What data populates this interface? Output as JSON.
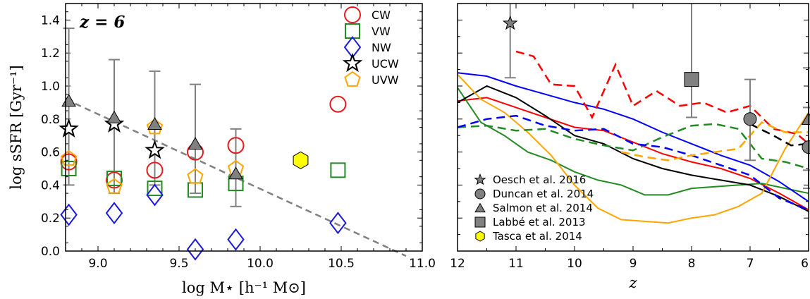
{
  "chart_data": [
    {
      "type": "scatter",
      "annotation": "z = 6",
      "xlabel": "log M⋆ [h⁻¹ M⊙]",
      "ylabel": "log sSFR [Gyr⁻¹]",
      "xlim": [
        8.8,
        11.0
      ],
      "ylim": [
        0.0,
        1.5
      ],
      "xticks": [
        "9.0",
        "9.5",
        "10.0",
        "10.5",
        "11.0"
      ],
      "xtick_values": [
        9.0,
        9.5,
        10.0,
        10.5,
        11.0
      ],
      "yticks": [
        "0.0",
        "0.2",
        "0.4",
        "0.6",
        "0.8",
        "1.0",
        "1.2",
        "1.4"
      ],
      "ytick_values": [
        0.0,
        0.2,
        0.4,
        0.6,
        0.8,
        1.0,
        1.2,
        1.4
      ],
      "legend_position": "top-right",
      "series": [
        {
          "name": "CW",
          "marker": "circle",
          "color": "#e41a1c",
          "x": [
            8.82,
            9.1,
            9.35,
            9.6,
            9.85,
            10.48
          ],
          "y": [
            0.54,
            0.43,
            0.49,
            0.6,
            0.64,
            0.89
          ]
        },
        {
          "name": "VW",
          "marker": "square",
          "color": "#228b22",
          "x": [
            8.82,
            9.1,
            9.35,
            9.6,
            9.85,
            10.48
          ],
          "y": [
            0.5,
            0.44,
            0.38,
            0.37,
            0.41,
            0.49
          ]
        },
        {
          "name": "NW",
          "marker": "diamond",
          "color": "#1a1adb",
          "x": [
            8.82,
            9.1,
            9.35,
            9.6,
            9.85,
            10.48
          ],
          "y": [
            0.22,
            0.23,
            0.34,
            0.01,
            0.07,
            0.17
          ]
        },
        {
          "name": "UCW",
          "marker": "star",
          "color": "#000000",
          "x": [
            8.82,
            9.1,
            9.35
          ],
          "y": [
            0.74,
            0.77,
            0.61
          ]
        },
        {
          "name": "UVW",
          "marker": "pentagon",
          "color": "#ffa500",
          "x": [
            8.82,
            9.1,
            9.35,
            9.6,
            9.85
          ],
          "y": [
            0.56,
            0.39,
            0.75,
            0.45,
            0.5
          ]
        }
      ],
      "observations": [
        {
          "label": "Salmon et al. 2014",
          "marker": "triangle",
          "x": [
            8.82,
            9.1,
            9.35,
            9.6,
            9.85
          ],
          "y": [
            0.91,
            0.81,
            0.77,
            0.65,
            0.47
          ],
          "yerr_low": [
            0.4,
            0.35,
            0.4,
            0.35,
            0.27
          ],
          "yerr_high": [
            1.35,
            1.16,
            1.09,
            1.01,
            0.74
          ]
        },
        {
          "label": "Tasca et al. 2014",
          "marker": "hexagon",
          "x": [
            10.25
          ],
          "y": [
            0.55
          ]
        }
      ],
      "fit_line": {
        "x": [
          8.8,
          10.9
        ],
        "y": [
          0.92,
          -0.03
        ]
      }
    },
    {
      "type": "line",
      "xlabel": "z",
      "xlim": [
        12,
        6
      ],
      "ylim": [
        0.0,
        1.5
      ],
      "xticks": [
        "12",
        "11",
        "10",
        "9",
        "8",
        "7",
        "6"
      ],
      "xtick_values": [
        12,
        11,
        10,
        9,
        8,
        7,
        6
      ],
      "legend_position": "bottom-left",
      "series": [
        {
          "name": "CW",
          "color": "#ff0000",
          "style": "solid",
          "x": [
            12,
            11.5,
            11,
            10.5,
            10,
            9.5,
            9,
            8.5,
            8,
            7.5,
            7,
            6.5,
            6
          ],
          "y": [
            0.91,
            0.93,
            0.87,
            0.81,
            0.75,
            0.73,
            0.66,
            0.59,
            0.54,
            0.5,
            0.44,
            0.35,
            0.25
          ]
        },
        {
          "name": "VW",
          "color": "#228b22",
          "style": "solid",
          "x": [
            12,
            11.6,
            11.2,
            10.8,
            10.4,
            10,
            9.6,
            9.2,
            8.8,
            8.4,
            8,
            7.6,
            7.2,
            6.8,
            6.4,
            6
          ],
          "y": [
            0.99,
            0.78,
            0.7,
            0.6,
            0.55,
            0.48,
            0.43,
            0.4,
            0.34,
            0.34,
            0.38,
            0.39,
            0.4,
            0.41,
            0.38,
            0.35
          ]
        },
        {
          "name": "NW",
          "color": "#0000ff",
          "style": "solid",
          "x": [
            12,
            11.5,
            11,
            10.5,
            10,
            9.5,
            9,
            8.5,
            8,
            7.5,
            7,
            6.5,
            6
          ],
          "y": [
            1.08,
            1.06,
            1.0,
            0.95,
            0.9,
            0.86,
            0.8,
            0.72,
            0.65,
            0.58,
            0.52,
            0.42,
            0.3
          ]
        },
        {
          "name": "UCW",
          "color": "#000000",
          "style": "solid",
          "x": [
            12,
            11.5,
            11,
            10.5,
            10,
            9.5,
            9,
            8.5,
            8,
            7.5,
            7,
            6.5,
            6
          ],
          "y": [
            0.9,
            1.0,
            0.93,
            0.82,
            0.7,
            0.65,
            0.56,
            0.5,
            0.46,
            0.43,
            0.4,
            0.33,
            0.24
          ]
        },
        {
          "name": "UVW",
          "color": "#ffa500",
          "style": "solid",
          "x": [
            12,
            11.6,
            11.2,
            10.8,
            10.4,
            10,
            9.6,
            9.2,
            8.8,
            8.4,
            8,
            7.6,
            7.2,
            6.8,
            6.4,
            6
          ],
          "y": [
            1.07,
            0.92,
            0.84,
            0.72,
            0.58,
            0.4,
            0.26,
            0.19,
            0.18,
            0.17,
            0.2,
            0.22,
            0.27,
            0.35,
            0.62,
            0.84
          ]
        },
        {
          "name": "CW",
          "color": "#ff0000",
          "style": "dashed",
          "x": [
            11,
            10.7,
            10.4,
            10,
            9.7,
            9.3,
            9,
            8.6,
            8.2,
            7.8,
            7.4,
            7,
            6.6,
            6.2,
            6
          ],
          "y": [
            1.21,
            1.18,
            1.01,
            1.0,
            0.81,
            1.13,
            0.88,
            0.97,
            0.88,
            0.9,
            0.84,
            0.88,
            0.74,
            0.71,
            0.65
          ]
        },
        {
          "name": "VW",
          "color": "#228b22",
          "style": "dashed",
          "x": [
            12,
            11.5,
            11,
            10.5,
            10,
            9.5,
            9,
            8.5,
            8,
            7.6,
            7.2,
            6.8,
            6.4,
            6
          ],
          "y": [
            0.75,
            0.76,
            0.73,
            0.74,
            0.68,
            0.64,
            0.61,
            0.69,
            0.76,
            0.77,
            0.74,
            0.56,
            0.54,
            0.5
          ]
        },
        {
          "name": "NW",
          "color": "#0000ff",
          "style": "dashed",
          "x": [
            12,
            11.5,
            11,
            10.5,
            10,
            9.5,
            9,
            8.5,
            8,
            7.5,
            7,
            6.5,
            6
          ],
          "y": [
            0.75,
            0.8,
            0.82,
            0.76,
            0.73,
            0.74,
            0.65,
            0.63,
            0.58,
            0.52,
            0.46,
            0.32,
            0.25
          ]
        },
        {
          "name": "UCW",
          "color": "#000000",
          "style": "dashed",
          "x": [
            7,
            6.6,
            6.3,
            6
          ],
          "y": [
            0.77,
            0.7,
            0.64,
            0.65
          ]
        },
        {
          "name": "UVW",
          "color": "#ffa500",
          "style": "dashed",
          "x": [
            9.2,
            8.8,
            8.4,
            8,
            7.6,
            7.2,
            6.8,
            6.4,
            6
          ],
          "y": [
            0.6,
            0.57,
            0.55,
            0.58,
            0.6,
            0.62,
            0.78,
            0.72,
            0.72
          ]
        }
      ],
      "observations": [
        {
          "label": "Oesch et al. 2016",
          "marker": "star",
          "x": [
            11.1
          ],
          "y": [
            1.38
          ],
          "yerr_low": [
            1.05
          ],
          "yerr_high": [
            1.5
          ]
        },
        {
          "label": "Duncan et al. 2014",
          "marker": "circle",
          "x": [
            7.0,
            6.0
          ],
          "y": [
            0.8,
            0.63
          ],
          "yerr_low": [
            0.55,
            0.38
          ],
          "yerr_high": [
            1.04,
            0.87
          ]
        },
        {
          "label": "Salmon et al. 2014",
          "marker": "triangle",
          "x": [
            6.0
          ],
          "y": [
            0.8
          ],
          "yerr_low": [
            0.49
          ],
          "yerr_high": [
            1.11
          ]
        },
        {
          "label": "Labbé et al. 2013",
          "marker": "square",
          "x": [
            8.0
          ],
          "y": [
            1.04
          ],
          "yerr_low": [
            0.81
          ],
          "yerr_high": [
            1.5
          ]
        },
        {
          "label": "Tasca et al. 2014",
          "marker": "hexagon",
          "x": [],
          "y": []
        }
      ]
    }
  ]
}
